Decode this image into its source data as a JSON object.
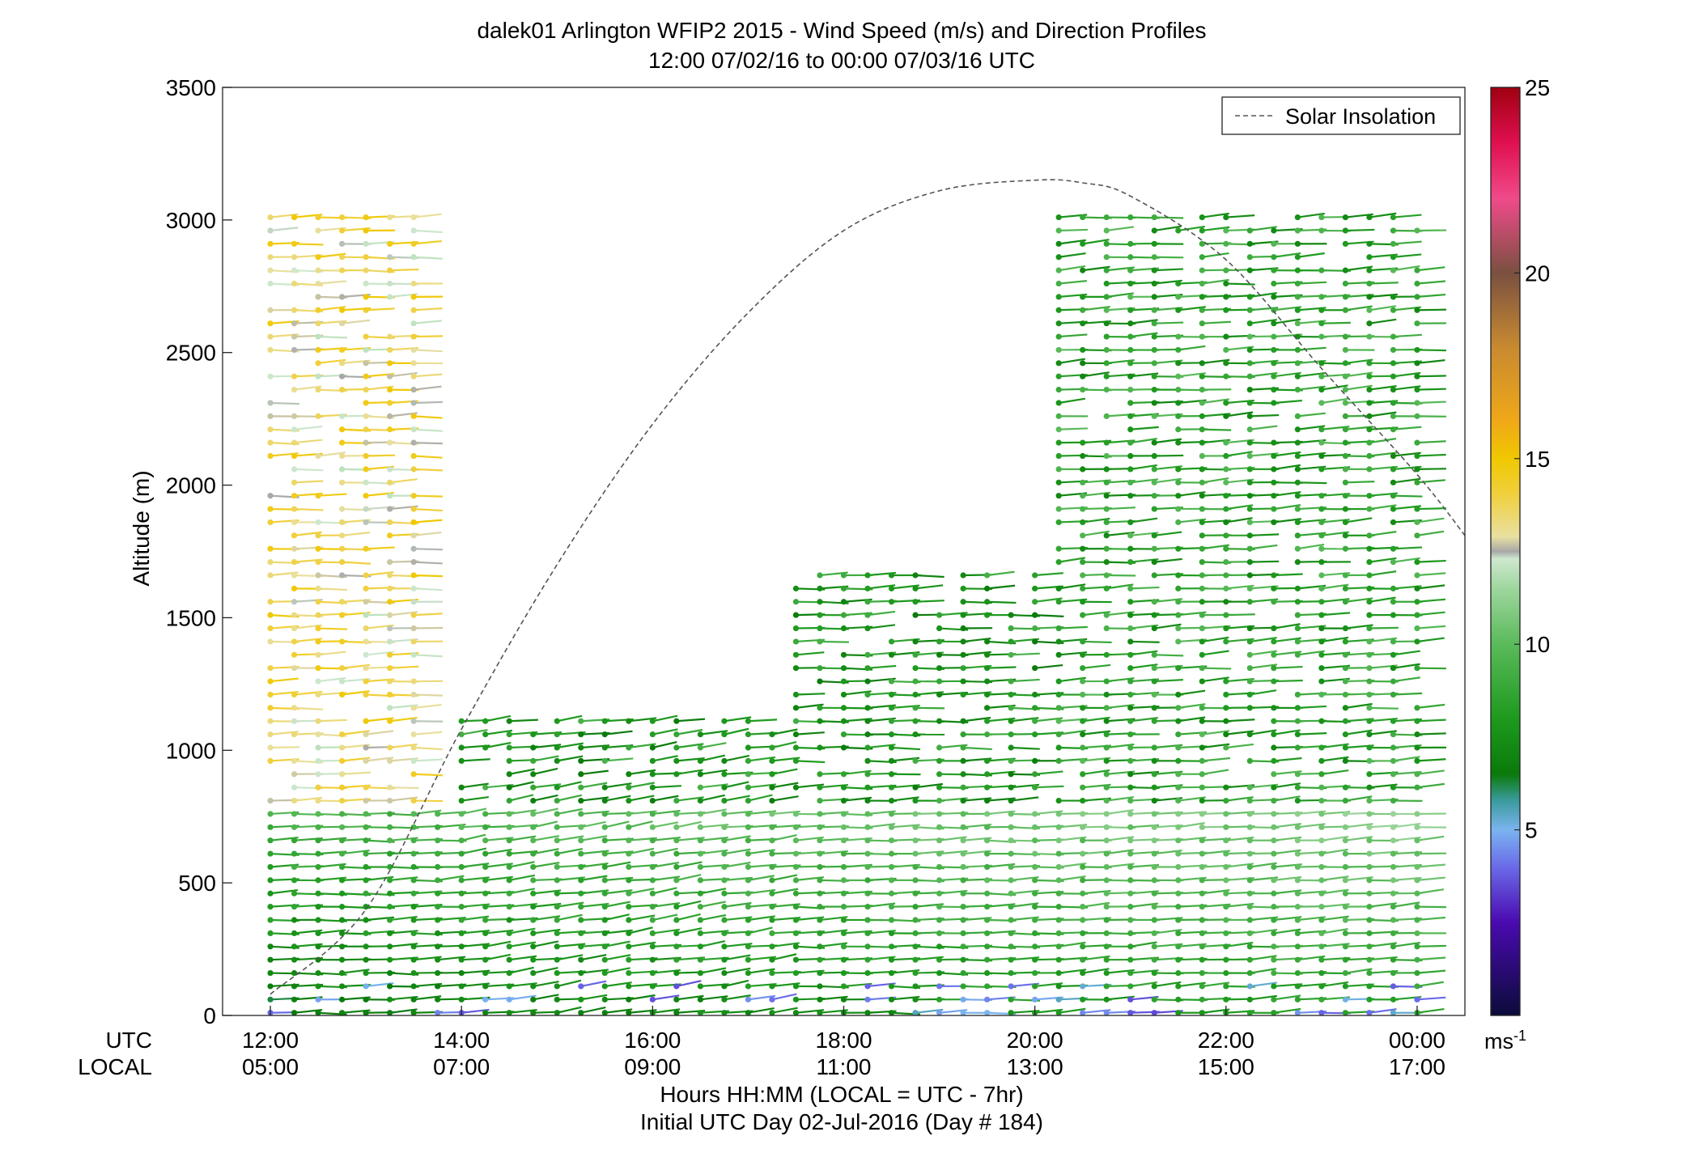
{
  "chart_data": {
    "type": "wind_barb_profile",
    "title": "dalek01 Arlington WFIP2 2015 - Wind Speed (m/s) and Direction Profiles",
    "subtitle": "12:00 07/02/16 to 00:00 07/03/16  UTC",
    "ylabel": "Altitude (m)",
    "xlabel": "Hours HH:MM  (LOCAL = UTC - 7hr)",
    "xlabel2": "Initial UTC Day 02-Jul-2016 (Day # 184)",
    "row_utc_label": "UTC",
    "row_local_label": "LOCAL",
    "xlim_hours_utc": [
      11.5,
      24.5
    ],
    "ylim": [
      0,
      3500
    ],
    "yticks": [
      0,
      500,
      1000,
      1500,
      2000,
      2500,
      3000,
      3500
    ],
    "xticks_utc_hours": [
      12,
      14,
      16,
      18,
      20,
      22,
      24
    ],
    "xtick_labels_utc": [
      "12:00",
      "14:00",
      "16:00",
      "18:00",
      "20:00",
      "22:00",
      "00:00"
    ],
    "xtick_labels_local": [
      "05:00",
      "07:00",
      "09:00",
      "11:00",
      "13:00",
      "15:00",
      "17:00"
    ],
    "legend": {
      "label": "Solar Insolation",
      "position": "top-right"
    },
    "solar_insolation": {
      "note": "dashed curve; altitude-axis equivalent values",
      "x_hours_utc": [
        12.0,
        13.0,
        14.0,
        15.0,
        16.0,
        17.0,
        18.0,
        19.0,
        20.0,
        20.5,
        21.0,
        22.0,
        23.0,
        24.0,
        24.5
      ],
      "y": [
        80,
        400,
        1080,
        1700,
        2230,
        2650,
        2960,
        3110,
        3150,
        3140,
        3090,
        2850,
        2440,
        2040,
        1810
      ]
    },
    "colorbar": {
      "unit_label": "ms",
      "unit_exponent": "-1",
      "range": [
        0,
        25
      ],
      "ticks": [
        5,
        10,
        15,
        20,
        25
      ],
      "stops": [
        {
          "v": 0.0,
          "c": "#0b0b3a"
        },
        {
          "v": 2.5,
          "c": "#4a0ab0"
        },
        {
          "v": 4.0,
          "c": "#6a6ae8"
        },
        {
          "v": 5.0,
          "c": "#7ab4f0"
        },
        {
          "v": 5.8,
          "c": "#3a9a9a"
        },
        {
          "v": 6.5,
          "c": "#0a7a0a"
        },
        {
          "v": 8.0,
          "c": "#1e9a1e"
        },
        {
          "v": 10.0,
          "c": "#5aba5a"
        },
        {
          "v": 11.5,
          "c": "#9ed69e"
        },
        {
          "v": 12.3,
          "c": "#cfe8cf"
        },
        {
          "v": 12.5,
          "c": "#a8a8a8"
        },
        {
          "v": 12.9,
          "c": "#e8e0a0"
        },
        {
          "v": 14.0,
          "c": "#f0d040"
        },
        {
          "v": 15.0,
          "c": "#f0c800"
        },
        {
          "v": 16.0,
          "c": "#f0a818"
        },
        {
          "v": 18.0,
          "c": "#c88a30"
        },
        {
          "v": 20.0,
          "c": "#7a5040"
        },
        {
          "v": 22.0,
          "c": "#f04a8a"
        },
        {
          "v": 23.5,
          "c": "#e01050"
        },
        {
          "v": 25.0,
          "c": "#a00010"
        }
      ]
    },
    "profiles": {
      "note": "approximate wind profiles read from barb colors/directions; speed m/s, dir degrees (meteorological)",
      "layers": [
        {
          "x_start": 12.0,
          "x_end": 24.0,
          "z_top": 800,
          "speed": 8.5,
          "dir": 280
        },
        {
          "x_start": 12.0,
          "x_end": 13.6,
          "z_top": 3050,
          "speed": 13.5,
          "dir": 275
        },
        {
          "x_start": 14.0,
          "x_end": 17.5,
          "z_top": 1150,
          "speed": 8.0,
          "dir": 290
        },
        {
          "x_start": 17.5,
          "x_end": 24.0,
          "z_top": 1700,
          "speed": 8.0,
          "dir": 275
        },
        {
          "x_start": 20.1,
          "x_end": 24.0,
          "z_top": 3050,
          "speed": 8.5,
          "dir": 280
        }
      ]
    }
  }
}
